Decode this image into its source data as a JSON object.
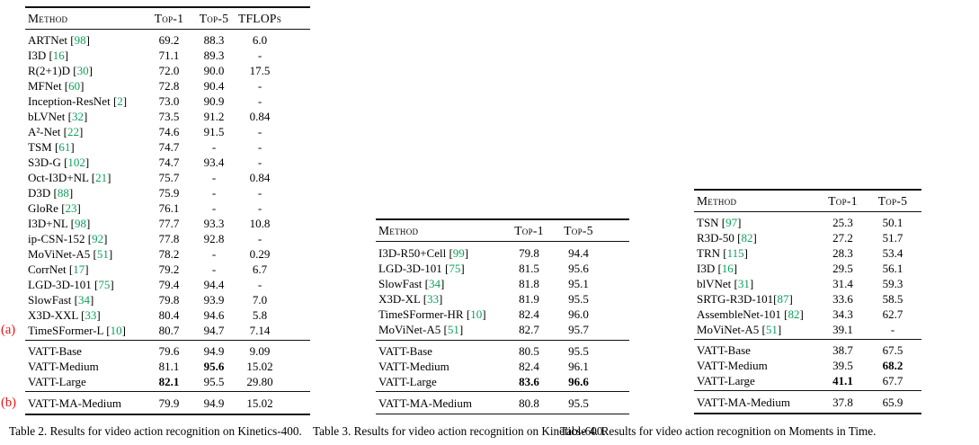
{
  "colors": {
    "reference_green": "#0aa15a",
    "marker_red": "#ee1111",
    "rule_black": "#111111",
    "text_black": "#000000",
    "background": "#ffffff"
  },
  "tables": [
    {
      "name": "kinetics-400",
      "caption": "Table 2. Results for video action recognition on Kinetics-400.",
      "columns": [
        "Method",
        "Top-1",
        "Top-5",
        "TFLOPs"
      ],
      "groups": [
        {
          "rows": [
            {
              "method": "ARTNet",
              "ref": "98",
              "values": [
                "69.2",
                "88.3",
                "6.0"
              ]
            },
            {
              "method": "I3D",
              "ref": "16",
              "values": [
                "71.1",
                "89.3",
                "-"
              ]
            },
            {
              "method": "R(2+1)D",
              "ref": "30",
              "values": [
                "72.0",
                "90.0",
                "17.5"
              ]
            },
            {
              "method": "MFNet",
              "ref": "60",
              "values": [
                "72.8",
                "90.4",
                "-"
              ]
            },
            {
              "method": "Inception-ResNet",
              "ref": "2",
              "values": [
                "73.0",
                "90.9",
                "-"
              ]
            },
            {
              "method": "bLVNet",
              "ref": "32",
              "values": [
                "73.5",
                "91.2",
                "0.84"
              ]
            },
            {
              "method": "A²-Net",
              "ref": "22",
              "values": [
                "74.6",
                "91.5",
                "-"
              ]
            },
            {
              "method": "TSM",
              "ref": "61",
              "values": [
                "74.7",
                "-",
                "-"
              ]
            },
            {
              "method": "S3D-G",
              "ref": "102",
              "values": [
                "74.7",
                "93.4",
                "-"
              ]
            },
            {
              "method": "Oct-I3D+NL",
              "ref": "21",
              "values": [
                "75.7",
                "-",
                "0.84"
              ]
            },
            {
              "method": "D3D",
              "ref": "88",
              "values": [
                "75.9",
                "-",
                "-"
              ]
            },
            {
              "method": "GloRe",
              "ref": "23",
              "values": [
                "76.1",
                "-",
                "-"
              ]
            },
            {
              "method": "I3D+NL",
              "ref": "98",
              "values": [
                "77.7",
                "93.3",
                "10.8"
              ]
            },
            {
              "method": "ip-CSN-152",
              "ref": "92",
              "values": [
                "77.8",
                "92.8",
                "-"
              ]
            },
            {
              "method": "MoViNet-A5",
              "ref": "51",
              "values": [
                "78.2",
                "-",
                "0.29"
              ]
            },
            {
              "method": "CorrNet",
              "ref": "17",
              "values": [
                "79.2",
                "-",
                "6.7"
              ]
            },
            {
              "method": "LGD-3D-101",
              "ref": "75",
              "values": [
                "79.4",
                "94.4",
                "-"
              ]
            },
            {
              "method": "SlowFast",
              "ref": "34",
              "values": [
                "79.8",
                "93.9",
                "7.0"
              ]
            },
            {
              "method": "X3D-XXL",
              "ref": "33",
              "values": [
                "80.4",
                "94.6",
                "5.8"
              ]
            },
            {
              "method": "TimeSFormer-L",
              "ref": "10",
              "values": [
                "80.7",
                "94.7",
                "7.14"
              ],
              "marker": "(a)"
            }
          ]
        },
        {
          "rows": [
            {
              "method": "VATT-Base",
              "values": [
                "79.6",
                "94.9",
                "9.09"
              ]
            },
            {
              "method": "VATT-Medium",
              "values": [
                "81.1",
                "95.6",
                "15.02"
              ],
              "bold": [
                1
              ]
            },
            {
              "method": "VATT-Large",
              "values": [
                "82.1",
                "95.5",
                "29.80"
              ],
              "bold": [
                0
              ]
            }
          ]
        },
        {
          "rows": [
            {
              "method": "VATT-MA-Medium",
              "values": [
                "79.9",
                "94.9",
                "15.02"
              ],
              "marker": "(b)"
            }
          ]
        }
      ]
    },
    {
      "name": "kinetics-600",
      "caption": "Table 3. Results for video action recognition on Kinetics-600.",
      "columns": [
        "Method",
        "Top-1",
        "Top-5"
      ],
      "groups": [
        {
          "rows": [
            {
              "method": "I3D-R50+Cell",
              "ref": "99",
              "values": [
                "79.8",
                "94.4"
              ]
            },
            {
              "method": "LGD-3D-101",
              "ref": "75",
              "values": [
                "81.5",
                "95.6"
              ]
            },
            {
              "method": "SlowFast",
              "ref": "34",
              "values": [
                "81.8",
                "95.1"
              ]
            },
            {
              "method": "X3D-XL",
              "ref": "33",
              "values": [
                "81.9",
                "95.5"
              ]
            },
            {
              "method": "TimeSFormer-HR",
              "ref": "10",
              "values": [
                "82.4",
                "96.0"
              ]
            },
            {
              "method": "MoViNet-A5",
              "ref": "51",
              "values": [
                "82.7",
                "95.7"
              ]
            }
          ]
        },
        {
          "rows": [
            {
              "method": "VATT-Base",
              "values": [
                "80.5",
                "95.5"
              ]
            },
            {
              "method": "VATT-Medium",
              "values": [
                "82.4",
                "96.1"
              ]
            },
            {
              "method": "VATT-Large",
              "values": [
                "83.6",
                "96.6"
              ],
              "bold": [
                0,
                1
              ]
            }
          ]
        },
        {
          "rows": [
            {
              "method": "VATT-MA-Medium",
              "values": [
                "80.8",
                "95.5"
              ]
            }
          ]
        }
      ]
    },
    {
      "name": "moments-in-time",
      "caption": "Table 4. Results for video action recognition on Moments in Time.",
      "columns": [
        "Method",
        "Top-1",
        "Top-5"
      ],
      "groups": [
        {
          "rows": [
            {
              "method": "TSN",
              "ref": "97",
              "values": [
                "25.3",
                "50.1"
              ]
            },
            {
              "method": "R3D-50",
              "ref": "82",
              "values": [
                "27.2",
                "51.7"
              ]
            },
            {
              "method": "TRN",
              "ref": "115",
              "values": [
                "28.3",
                "53.4"
              ]
            },
            {
              "method": "I3D",
              "ref": "16",
              "values": [
                "29.5",
                "56.1"
              ]
            },
            {
              "method": "blVNet",
              "ref": "31",
              "values": [
                "31.4",
                "59.3"
              ]
            },
            {
              "method": "SRTG-R3D-101",
              "ref": "87",
              "sep": "",
              "values": [
                "33.6",
                "58.5"
              ]
            },
            {
              "method": "AssembleNet-101",
              "ref": "82",
              "values": [
                "34.3",
                "62.7"
              ]
            },
            {
              "method": "MoViNet-A5",
              "ref": "51",
              "values": [
                "39.1",
                "-"
              ]
            }
          ]
        },
        {
          "rows": [
            {
              "method": "VATT-Base",
              "values": [
                "38.7",
                "67.5"
              ]
            },
            {
              "method": "VATT-Medium",
              "values": [
                "39.5",
                "68.2"
              ],
              "bold": [
                1
              ]
            },
            {
              "method": "VATT-Large",
              "values": [
                "41.1",
                "67.7"
              ],
              "bold": [
                0
              ]
            }
          ]
        },
        {
          "rows": [
            {
              "method": "VATT-MA-Medium",
              "values": [
                "37.8",
                "65.9"
              ]
            }
          ]
        }
      ]
    }
  ]
}
